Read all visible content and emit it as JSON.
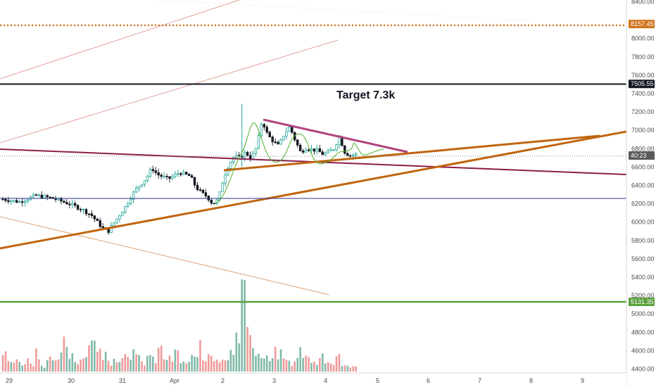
{
  "chart_data": {
    "type": "candlestick",
    "title": "",
    "annotation": "Target 7.3k",
    "y_axis": {
      "range": [
        4300,
        8600
      ],
      "ticks": [
        "8400.00",
        "8000.00",
        "7800.00",
        "7600.00",
        "7400.00",
        "7200.00",
        "7000.00",
        "6800.00",
        "6600.00",
        "6400.00",
        "6200.00",
        "6000.00",
        "5800.00",
        "5600.00",
        "5400.00",
        "5200.00",
        "5000.00",
        "4800.00",
        "4600.00",
        "4400.00"
      ],
      "tick_values": [
        8400,
        8000,
        7800,
        7600,
        7400,
        7200,
        7000,
        6800,
        6600,
        6400,
        6200,
        6000,
        5800,
        5600,
        5400,
        5200,
        5000,
        4800,
        4600,
        4400
      ]
    },
    "x_axis": {
      "labels": [
        "29",
        "30",
        "31",
        "Apr",
        "2",
        "3",
        "4",
        "5",
        "6",
        "7",
        "8",
        "9"
      ]
    },
    "price_tags": [
      {
        "label": "8157.45",
        "value": 8157.45,
        "color": "#d0741c",
        "style": "dotted"
      },
      {
        "label": "7505.55",
        "value": 7505.55,
        "color": "#131722",
        "style": "solid"
      },
      {
        "label": "40:23",
        "value": 6726,
        "color": "#5a5a5a",
        "style": "dotted-light"
      },
      {
        "label": "5131.35",
        "value": 5131.35,
        "color": "#5aa03c",
        "style": "solid-green"
      }
    ],
    "horizontal_levels": [
      {
        "value": 6272,
        "color": "#2e3192"
      }
    ],
    "price_path": [
      [
        0,
        6250
      ],
      [
        3,
        6220
      ],
      [
        6,
        6290
      ],
      [
        9,
        6260
      ],
      [
        12,
        6200
      ],
      [
        14,
        6150
      ],
      [
        16,
        6080
      ],
      [
        18,
        5940
      ],
      [
        19,
        5890
      ],
      [
        20,
        5980
      ],
      [
        22,
        6150
      ],
      [
        24,
        6350
      ],
      [
        26,
        6480
      ],
      [
        27,
        6590
      ],
      [
        28,
        6520
      ],
      [
        30,
        6470
      ],
      [
        32,
        6540
      ],
      [
        34,
        6500
      ],
      [
        35,
        6380
      ],
      [
        36,
        6320
      ],
      [
        37,
        6280
      ],
      [
        38,
        6200
      ],
      [
        39,
        6240
      ],
      [
        40,
        6480
      ],
      [
        41,
        6630
      ],
      [
        42,
        6720
      ],
      [
        43,
        6700
      ],
      [
        44,
        6760
      ],
      [
        45,
        6690
      ],
      [
        46,
        6820
      ],
      [
        47,
        7110
      ],
      [
        48,
        6950
      ],
      [
        49,
        6880
      ],
      [
        50,
        6830
      ],
      [
        51,
        6960
      ],
      [
        52,
        7040
      ],
      [
        53,
        6890
      ],
      [
        54,
        6760
      ],
      [
        55,
        6810
      ],
      [
        56,
        6790
      ],
      [
        57,
        6780
      ],
      [
        58,
        6740
      ],
      [
        59,
        6760
      ],
      [
        60,
        6800
      ],
      [
        61,
        6930
      ],
      [
        62,
        6760
      ],
      [
        63,
        6720
      ],
      [
        64,
        6740
      ]
    ],
    "volume_profile": [
      38,
      22,
      30,
      18,
      25,
      20,
      45,
      14,
      28,
      19,
      33,
      62,
      40,
      25,
      30,
      55,
      90,
      41,
      38,
      22,
      35,
      28,
      50,
      44,
      29,
      20,
      36,
      25,
      48,
      31,
      27,
      40,
      22,
      18,
      30,
      52,
      26,
      45,
      33,
      24,
      39,
      58,
      70,
      210,
      128,
      48,
      35,
      28,
      26,
      41,
      37,
      22,
      19,
      45,
      32,
      28,
      20,
      44,
      18,
      22,
      38,
      16,
      12,
      9
    ],
    "notable_volume_spike": {
      "index": 43,
      "value": 210
    }
  }
}
